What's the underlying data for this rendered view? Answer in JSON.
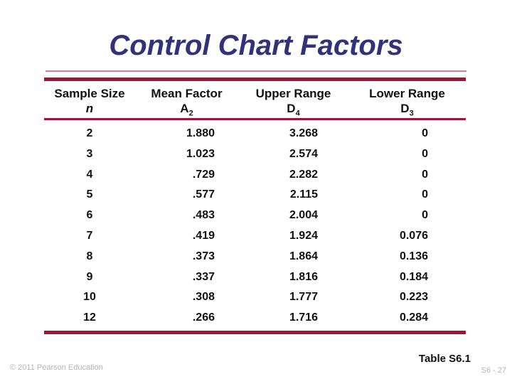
{
  "title": "Control Chart Factors",
  "table": {
    "caption": "Table S6.1",
    "headers": [
      {
        "line1": "Sample Size",
        "symbol": "n",
        "sub": ""
      },
      {
        "line1": "Mean Factor",
        "symbol": "A",
        "sub": "2"
      },
      {
        "line1": "Upper Range",
        "symbol": "D",
        "sub": "4"
      },
      {
        "line1": "Lower Range",
        "symbol": "D",
        "sub": "3"
      }
    ],
    "rows": [
      {
        "n": "2",
        "a2": "1.880",
        "d4": "3.268",
        "d3": "0"
      },
      {
        "n": "3",
        "a2": "1.023",
        "d4": "2.574",
        "d3": "0"
      },
      {
        "n": "4",
        "a2": ".729",
        "d4": "2.282",
        "d3": "0"
      },
      {
        "n": "5",
        "a2": ".577",
        "d4": "2.115",
        "d3": "0"
      },
      {
        "n": "6",
        "a2": ".483",
        "d4": "2.004",
        "d3": "0"
      },
      {
        "n": "7",
        "a2": ".419",
        "d4": "1.924",
        "d3": "0.076"
      },
      {
        "n": "8",
        "a2": ".373",
        "d4": "1.864",
        "d3": "0.136"
      },
      {
        "n": "9",
        "a2": ".337",
        "d4": "1.816",
        "d3": "0.184"
      },
      {
        "n": "10",
        "a2": ".308",
        "d4": "1.777",
        "d3": "0.223"
      },
      {
        "n": "12",
        "a2": ".266",
        "d4": "1.716",
        "d3": "0.284"
      }
    ]
  },
  "footer": {
    "copyright": "© 2011 Pearson Education",
    "slide_number": "S6 - 27"
  },
  "colors": {
    "title": "#32327a",
    "rule": "#a41335",
    "title_rule": "#cc8291",
    "text": "#111111",
    "muted": "#b3b3b3"
  }
}
